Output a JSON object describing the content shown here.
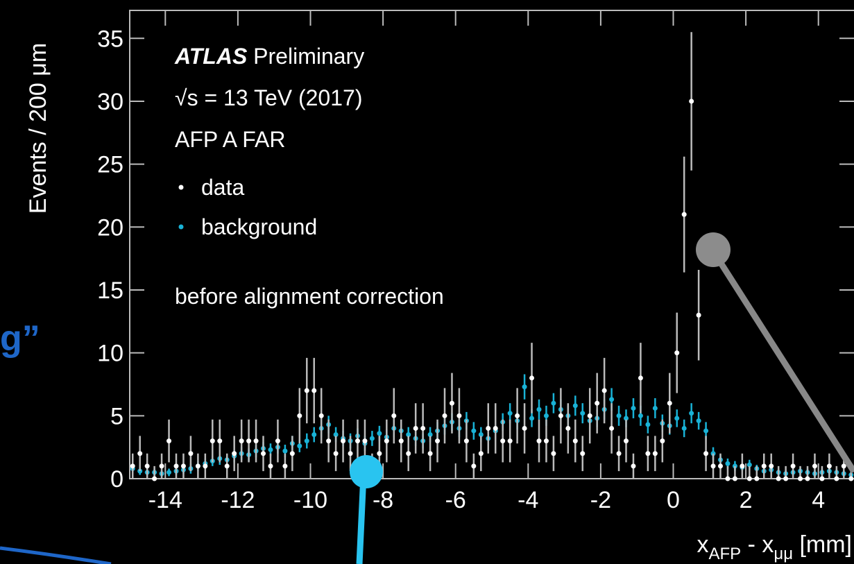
{
  "chart_data": {
    "type": "scatter",
    "text_lines": [
      "√s = 13 TeV (2017)",
      "AFP A FAR",
      "before alignment correction"
    ],
    "experiment": "ATLAS",
    "status": "Preliminary",
    "slide_fragment": "g”",
    "ylabel": "Events / 200 μm",
    "xlabel": {
      "main": "x",
      "sub1": "AFP",
      "mid": " - x",
      "sub2": "μμ",
      "unit": " [mm]"
    },
    "x": [
      -14.9,
      -14.7,
      -14.5,
      -14.3,
      -14.1,
      -13.9,
      -13.7,
      -13.5,
      -13.3,
      -13.1,
      -12.9,
      -12.7,
      -12.5,
      -12.3,
      -12.1,
      -11.9,
      -11.7,
      -11.5,
      -11.3,
      -11.1,
      -10.9,
      -10.7,
      -10.5,
      -10.3,
      -10.1,
      -9.9,
      -9.7,
      -9.5,
      -9.3,
      -9.1,
      -8.9,
      -8.7,
      -8.5,
      -8.3,
      -8.1,
      -7.9,
      -7.7,
      -7.5,
      -7.3,
      -7.1,
      -6.9,
      -6.7,
      -6.5,
      -6.3,
      -6.1,
      -5.9,
      -5.7,
      -5.5,
      -5.3,
      -5.1,
      -4.9,
      -4.7,
      -4.5,
      -4.3,
      -4.1,
      -3.9,
      -3.7,
      -3.5,
      -3.3,
      -3.1,
      -2.9,
      -2.7,
      -2.5,
      -2.3,
      -2.1,
      -1.9,
      -1.7,
      -1.5,
      -1.3,
      -1.1,
      -0.9,
      -0.7,
      -0.5,
      -0.3,
      -0.1,
      0.1,
      0.3,
      0.5,
      0.7,
      0.9,
      1.1,
      1.3,
      1.5,
      1.7,
      1.9,
      2.1,
      2.3,
      2.5,
      2.7,
      2.9,
      3.1,
      3.3,
      3.5,
      3.7,
      3.9,
      4.1,
      4.3,
      4.5,
      4.7,
      4.9
    ],
    "series": [
      {
        "name": "data",
        "color": "#ffffff",
        "values": [
          1,
          2,
          1,
          0,
          1,
          3,
          1,
          1,
          2,
          1,
          1,
          3,
          3,
          1,
          2,
          3,
          3,
          3,
          2,
          1,
          3,
          1,
          2,
          5,
          7,
          7,
          5,
          3,
          2,
          3,
          2,
          3,
          3,
          1,
          2,
          3,
          5,
          3,
          2,
          4,
          4,
          2,
          3,
          5,
          6,
          5,
          3,
          1,
          2,
          4,
          4,
          3,
          3,
          5,
          4,
          8,
          3,
          3,
          2,
          5,
          4,
          3,
          2,
          5,
          6,
          7,
          4,
          2,
          3,
          1,
          8,
          2,
          2,
          3,
          6,
          10,
          21,
          30,
          13,
          2,
          1,
          1,
          0,
          0,
          1,
          0,
          0,
          1,
          1,
          0,
          0,
          1,
          0,
          0,
          1,
          0,
          1,
          0,
          1,
          0
        ],
        "errors": [
          1,
          1.4,
          1,
          1,
          1,
          1.7,
          1,
          1,
          1.4,
          1,
          1,
          1.7,
          1.7,
          1,
          1.4,
          1.7,
          1.7,
          1.7,
          1.4,
          1,
          1.7,
          1,
          1.4,
          2.2,
          2.6,
          2.6,
          2.2,
          1.7,
          1.4,
          1.7,
          1.4,
          1.7,
          1.7,
          1,
          1.4,
          1.7,
          2.2,
          1.7,
          1.4,
          2,
          2,
          1.4,
          1.7,
          2.2,
          2.4,
          2.2,
          1.7,
          1,
          1.4,
          2,
          2,
          1.7,
          1.7,
          2.2,
          2,
          2.8,
          1.7,
          1.7,
          1.4,
          2.2,
          2,
          1.7,
          1.4,
          2.2,
          2.4,
          2.6,
          2,
          1.4,
          1.7,
          1,
          2.8,
          1.4,
          1.4,
          1.7,
          2.4,
          3.2,
          4.6,
          5.5,
          3.6,
          1.4,
          1,
          1,
          1,
          1,
          1,
          1,
          1,
          1,
          1,
          1,
          1,
          1,
          1,
          1,
          1,
          1,
          1,
          1,
          1,
          1
        ]
      },
      {
        "name": "background",
        "color": "#19b2d6",
        "values": [
          0.8,
          0.6,
          0.5,
          0.5,
          0.4,
          0.5,
          0.6,
          0.7,
          0.8,
          1.0,
          1.2,
          1.4,
          1.6,
          1.5,
          1.8,
          2.0,
          1.9,
          2.2,
          2.4,
          2.3,
          2.5,
          2.2,
          2.8,
          2.6,
          3.0,
          3.5,
          4.0,
          4.3,
          3.5,
          3.2,
          3.0,
          3.4,
          2.8,
          3.2,
          3.6,
          3.3,
          4.0,
          3.8,
          3.5,
          3.2,
          3.0,
          3.5,
          3.8,
          4.2,
          4.5,
          4.0,
          4.6,
          3.8,
          3.5,
          3.2,
          3.8,
          4.5,
          5.2,
          4.6,
          7.3,
          4.8,
          5.5,
          5.0,
          6.0,
          5.5,
          5.0,
          5.8,
          5.2,
          4.6,
          4.8,
          5.5,
          6.3,
          5.0,
          4.8,
          5.6,
          5.0,
          4.3,
          5.6,
          4.4,
          4.2,
          4.8,
          4.0,
          5.2,
          4.6,
          3.8,
          2.0,
          1.5,
          1.2,
          1.0,
          0.9,
          1.1,
          0.8,
          0.6,
          0.7,
          0.5,
          0.4,
          0.5,
          0.6,
          0.5,
          0.4,
          0.5,
          0.6,
          0.5,
          0.4,
          0.3
        ],
        "errors": [
          0.4,
          0.3,
          0.3,
          0.3,
          0.3,
          0.3,
          0.3,
          0.3,
          0.4,
          0.4,
          0.4,
          0.4,
          0.5,
          0.4,
          0.5,
          0.5,
          0.5,
          0.5,
          0.5,
          0.5,
          0.5,
          0.5,
          0.6,
          0.5,
          0.6,
          0.6,
          0.7,
          0.7,
          0.6,
          0.6,
          0.6,
          0.6,
          0.6,
          0.6,
          0.6,
          0.6,
          0.7,
          0.7,
          0.6,
          0.6,
          0.6,
          0.6,
          0.7,
          0.7,
          0.7,
          0.7,
          0.7,
          0.7,
          0.6,
          0.6,
          0.7,
          0.7,
          0.8,
          0.7,
          1.0,
          0.7,
          0.8,
          0.8,
          0.8,
          0.8,
          0.8,
          0.8,
          0.8,
          0.7,
          0.7,
          0.8,
          0.9,
          0.8,
          0.7,
          0.8,
          0.8,
          0.7,
          0.8,
          0.7,
          0.7,
          0.7,
          0.7,
          0.8,
          0.7,
          0.7,
          0.5,
          0.4,
          0.4,
          0.4,
          0.3,
          0.4,
          0.3,
          0.3,
          0.3,
          0.3,
          0.3,
          0.3,
          0.3,
          0.3,
          0.3,
          0.3,
          0.3,
          0.3,
          0.3,
          0.3
        ]
      }
    ],
    "xlim": [
      -15,
      5
    ],
    "ylim": [
      0,
      37
    ],
    "xticks": [
      -14,
      -12,
      -10,
      -8,
      -6,
      -4,
      -2,
      0,
      2,
      4
    ],
    "yticks": [
      0,
      5,
      10,
      15,
      20,
      25,
      30,
      35
    ]
  }
}
